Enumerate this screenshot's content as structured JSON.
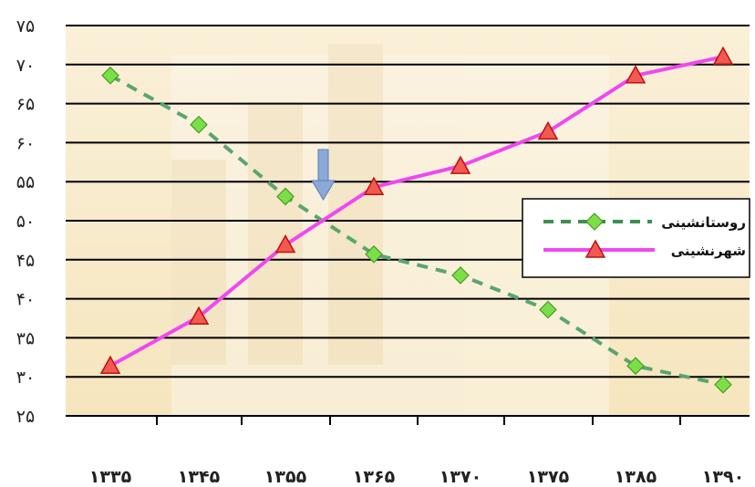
{
  "chart_data": {
    "type": "line",
    "x": [
      "۱۳۳۵",
      "۱۳۴۵",
      "۱۳۵۵",
      "۱۳۶۵",
      "۱۳۷۰",
      "۱۳۷۵",
      "۱۳۸۵",
      "۱۳۹۰"
    ],
    "y_ticks": [
      "۲۵",
      "۳۰",
      "۳۵",
      "۴۰",
      "۴۵",
      "۵۰",
      "۵۵",
      "۶۰",
      "۶۵",
      "۷۰",
      "۷۵"
    ],
    "ylim": [
      25,
      75
    ],
    "grid": true,
    "legend_position": "right",
    "annotation": "down-arrow",
    "series": [
      {
        "name": "روستانشینی",
        "values": [
          68.6,
          62.3,
          53.1,
          45.7,
          43.0,
          38.6,
          31.4,
          29.0
        ],
        "line_color": "#5aa56f",
        "marker": "diamond",
        "marker_color": "#7be047",
        "dashed": true
      },
      {
        "name": "شهرنشینی",
        "values": [
          31.4,
          37.7,
          46.9,
          54.3,
          57.0,
          61.4,
          68.6,
          71.0
        ],
        "line_color": "#f048f0",
        "marker": "triangle",
        "marker_color": "#f05a50",
        "dashed": false
      }
    ]
  }
}
